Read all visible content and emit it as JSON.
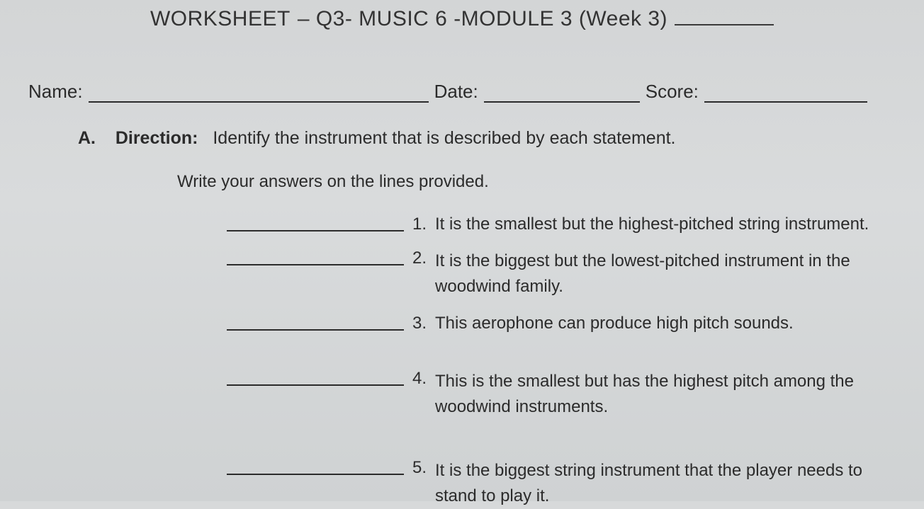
{
  "header": {
    "prefix_fragment": "WORKSHEET",
    "title_rest": "– Q3- MUSIC 6 -MODULE 3 (Week 3)"
  },
  "meta": {
    "name_label": "Name:",
    "date_label": "Date:",
    "score_label": "Score:"
  },
  "section": {
    "letter": "A.",
    "direction_label": "Direction:",
    "direction_text": "Identify the instrument that is described by each statement.",
    "subhead": "Write your answers on the lines provided."
  },
  "items": [
    {
      "num": "1.",
      "text": "It is the smallest but the highest-pitched string instrument."
    },
    {
      "num": "2.",
      "text": "It is the biggest but the lowest-pitched instrument in the woodwind family."
    },
    {
      "num": "3.",
      "text": "This aerophone can produce high pitch sounds."
    },
    {
      "num": "4.",
      "text": "This is the smallest but has the highest pitch among the woodwind instruments."
    },
    {
      "num": "5.",
      "text": "It is the biggest string instrument that the player needs to stand to play it."
    }
  ],
  "colors": {
    "background": "#d7d9da",
    "text": "#2b2b2b",
    "rule": "#2b2b2b"
  }
}
